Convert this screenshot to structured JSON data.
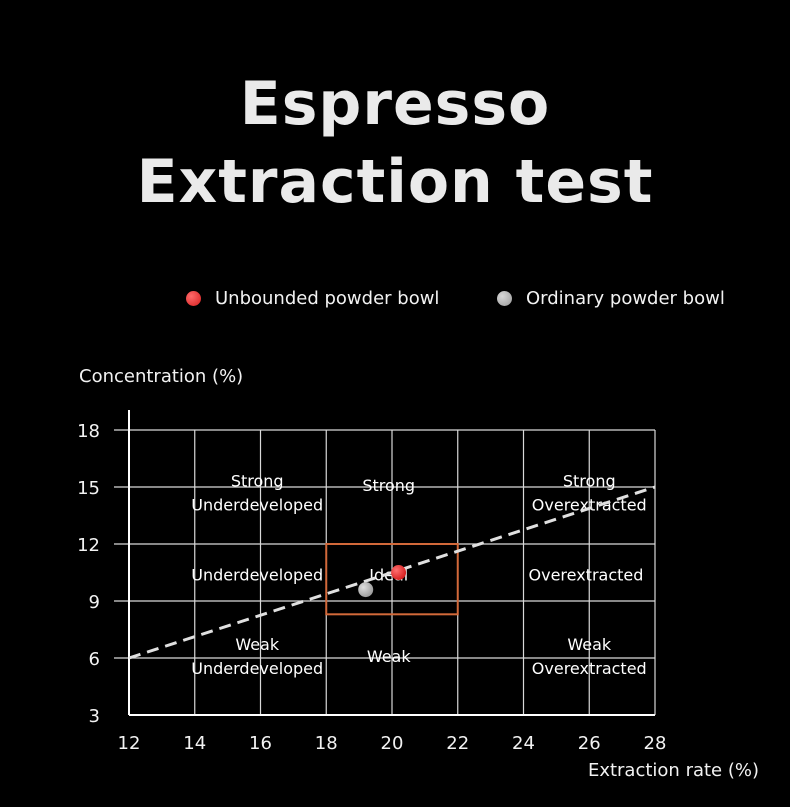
{
  "title_lines": [
    "Espresso",
    "Extraction test"
  ],
  "legend": [
    {
      "label": "Unbounded powder bowl",
      "color": "#e53232"
    },
    {
      "label": "Ordinary powder bowl",
      "color": "#b4b4b4"
    }
  ],
  "chart_data": {
    "type": "scatter",
    "xlabel": "Extraction rate (%)",
    "ylabel": "Concentration (%)",
    "xlim": [
      12,
      28
    ],
    "ylim": [
      3,
      18
    ],
    "xticks": [
      12,
      14,
      16,
      18,
      20,
      22,
      24,
      26,
      28
    ],
    "yticks": [
      3,
      6,
      9,
      12,
      15,
      18
    ],
    "grid": true,
    "legend_position": "top",
    "series": [
      {
        "name": "Unbounded powder bowl",
        "color": "#e53232",
        "points": [
          {
            "x": 20.2,
            "y": 10.5
          }
        ]
      },
      {
        "name": "Ordinary powder bowl",
        "color": "#b4b4b4",
        "points": [
          {
            "x": 19.2,
            "y": 9.6
          }
        ]
      }
    ],
    "trend_line": {
      "style": "dashed",
      "color": "#e0e0e0",
      "from": {
        "x": 12,
        "y": 6
      },
      "to": {
        "x": 28,
        "y": 15
      }
    },
    "ideal_box": {
      "x": [
        18,
        22
      ],
      "y": [
        8.3,
        12
      ],
      "color": "#d2693a"
    },
    "region_labels": [
      {
        "lines": [
          "Strong",
          "Underdeveloped"
        ],
        "x": 15.9,
        "y": 14.7
      },
      {
        "lines": [
          "Strong"
        ],
        "x": 19.9,
        "y": 15.1
      },
      {
        "lines": [
          "Strong",
          "Overextracted"
        ],
        "x": 26.0,
        "y": 14.7
      },
      {
        "lines": [
          "Underdeveloped"
        ],
        "x": 15.9,
        "y": 10.4
      },
      {
        "lines": [
          "Ideal"
        ],
        "x": 19.9,
        "y": 10.4
      },
      {
        "lines": [
          "Overextracted"
        ],
        "x": 25.9,
        "y": 10.4
      },
      {
        "lines": [
          "Weak",
          "Underdeveloped"
        ],
        "x": 15.9,
        "y": 6.1
      },
      {
        "lines": [
          "Weak"
        ],
        "x": 19.9,
        "y": 6.1
      },
      {
        "lines": [
          "Weak",
          "Overextracted"
        ],
        "x": 26.0,
        "y": 6.1
      }
    ]
  }
}
